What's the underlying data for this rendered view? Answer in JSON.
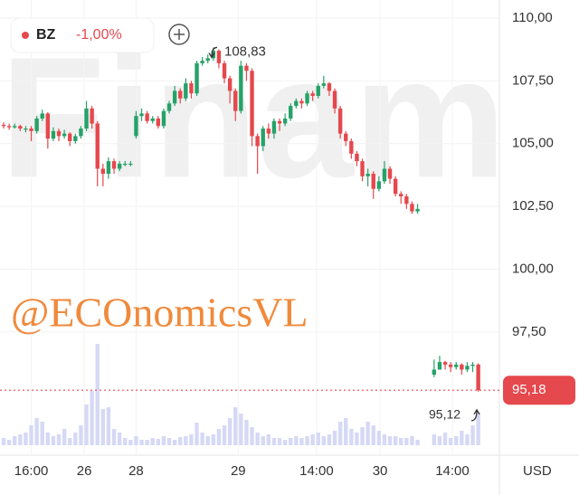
{
  "chart_data": {
    "type": "candlestick",
    "ticker": "BZ",
    "change": "-1,00%",
    "watermark": "Finam",
    "overlay_text": "@ECOnomicsVL",
    "currency": "USD",
    "up_color": "#26a269",
    "down_color": "#e5484d",
    "volume_color": "#d6d9f5",
    "grid": true,
    "x": [
      0,
      1,
      2,
      3,
      4,
      5,
      6,
      7,
      8,
      9,
      10,
      11,
      12,
      13,
      14,
      15,
      16,
      17,
      18,
      19,
      20,
      21,
      22,
      23,
      24,
      25,
      26,
      27,
      28,
      29,
      30,
      31,
      32,
      33,
      34,
      35,
      36,
      37,
      38,
      39,
      40,
      41,
      42,
      43,
      44,
      45,
      46,
      47,
      48,
      49,
      50,
      51,
      52,
      53,
      54,
      55,
      56,
      57,
      58,
      59,
      60,
      61,
      62,
      63,
      64,
      65,
      66,
      67,
      68,
      69,
      70,
      71,
      72,
      73,
      74,
      75,
      78,
      79,
      80,
      81,
      82,
      83,
      84,
      85,
      86
    ],
    "open": [
      105.75,
      105.7,
      105.65,
      105.7,
      105.6,
      105.6,
      105.5,
      106.0,
      106.2,
      105.2,
      105.5,
      105.3,
      105.4,
      105.1,
      105.3,
      105.6,
      106.4,
      105.8,
      104.0,
      103.8,
      104.3,
      104.0,
      104.2,
      104.2,
      105.3,
      106.1,
      106.2,
      105.9,
      106.0,
      105.7,
      106.3,
      106.6,
      107.1,
      106.8,
      107.4,
      107.0,
      108.2,
      108.3,
      108.4,
      108.7,
      108.2,
      107.6,
      107.1,
      106.3,
      108.1,
      107.9,
      105.3,
      104.9,
      105.6,
      105.4,
      105.9,
      105.8,
      106.0,
      106.5,
      106.7,
      106.6,
      107.0,
      106.9,
      107.3,
      107.4,
      107.1,
      106.4,
      105.4,
      105.1,
      104.6,
      104.3,
      103.7,
      103.8,
      103.2,
      103.5,
      104.0,
      103.6,
      103.0,
      102.9,
      102.6,
      102.3,
      95.8,
      96.0,
      96.3,
      96.2,
      96.1,
      96.2,
      96.0,
      96.15,
      96.2
    ],
    "high": [
      105.85,
      105.8,
      105.8,
      105.75,
      105.7,
      105.7,
      106.1,
      106.35,
      106.25,
      105.65,
      105.6,
      105.55,
      105.45,
      105.4,
      105.7,
      106.7,
      106.5,
      105.9,
      104.2,
      104.45,
      104.4,
      104.3,
      104.3,
      104.3,
      106.3,
      106.4,
      106.3,
      106.1,
      106.1,
      106.4,
      106.7,
      107.3,
      107.2,
      107.6,
      107.5,
      108.3,
      108.45,
      108.55,
      108.83,
      108.75,
      108.3,
      107.7,
      107.2,
      108.3,
      108.2,
      108.0,
      105.4,
      105.7,
      105.8,
      106.0,
      106.0,
      106.2,
      106.6,
      106.8,
      106.8,
      107.1,
      107.1,
      107.4,
      107.7,
      107.45,
      107.2,
      106.5,
      105.5,
      105.2,
      104.7,
      104.4,
      104.0,
      103.9,
      103.7,
      104.3,
      104.1,
      103.7,
      103.1,
      103.0,
      102.7,
      102.6,
      96.4,
      96.55,
      96.35,
      96.3,
      96.3,
      96.25,
      96.3,
      96.3,
      96.25
    ],
    "low": [
      105.6,
      105.55,
      105.6,
      105.5,
      105.45,
      105.1,
      105.4,
      105.9,
      104.8,
      105.1,
      105.1,
      105.2,
      104.9,
      105.0,
      105.2,
      105.5,
      105.6,
      103.3,
      103.3,
      103.6,
      103.8,
      103.9,
      104.1,
      104.1,
      105.2,
      105.9,
      105.8,
      105.8,
      105.6,
      105.6,
      106.2,
      106.5,
      106.6,
      106.7,
      106.8,
      106.9,
      108.1,
      108.2,
      108.3,
      108.0,
      107.4,
      106.6,
      105.9,
      106.2,
      107.5,
      104.9,
      103.8,
      104.7,
      105.2,
      105.2,
      105.5,
      105.7,
      105.9,
      106.4,
      106.4,
      106.5,
      106.7,
      106.8,
      107.2,
      106.9,
      106.2,
      105.2,
      104.9,
      104.4,
      104.1,
      103.5,
      103.3,
      102.8,
      103.1,
      103.4,
      103.4,
      102.9,
      102.6,
      102.4,
      102.2,
      102.2,
      95.7,
      96.0,
      96.0,
      95.9,
      96.0,
      95.8,
      95.9,
      95.9,
      95.12
    ],
    "close": [
      105.7,
      105.65,
      105.7,
      105.6,
      105.6,
      105.5,
      106.0,
      106.2,
      105.2,
      105.5,
      105.3,
      105.4,
      105.1,
      105.3,
      105.6,
      106.4,
      105.8,
      104.0,
      103.8,
      104.3,
      104.0,
      104.2,
      104.2,
      104.2,
      106.1,
      106.2,
      105.9,
      106.0,
      105.7,
      106.3,
      106.6,
      107.1,
      106.8,
      107.4,
      107.0,
      108.2,
      108.3,
      108.4,
      108.7,
      108.2,
      107.6,
      107.1,
      106.3,
      108.1,
      107.9,
      105.3,
      104.9,
      105.6,
      105.4,
      105.9,
      105.8,
      106.0,
      106.5,
      106.7,
      106.6,
      107.0,
      106.9,
      107.3,
      107.4,
      107.1,
      106.4,
      105.4,
      105.1,
      104.6,
      104.3,
      103.7,
      103.8,
      103.2,
      103.5,
      104.0,
      103.6,
      103.0,
      102.9,
      102.6,
      102.3,
      102.4,
      96.0,
      96.3,
      96.2,
      96.1,
      96.2,
      96.0,
      96.15,
      96.2,
      95.18
    ],
    "volume": [
      8,
      6,
      10,
      12,
      14,
      22,
      30,
      26,
      14,
      10,
      12,
      18,
      8,
      14,
      22,
      45,
      60,
      112,
      40,
      42,
      18,
      14,
      8,
      6,
      10,
      6,
      6,
      8,
      7,
      10,
      8,
      6,
      9,
      10,
      12,
      25,
      14,
      10,
      12,
      18,
      22,
      30,
      42,
      35,
      28,
      20,
      14,
      10,
      12,
      8,
      8,
      6,
      8,
      10,
      8,
      10,
      12,
      14,
      10,
      12,
      16,
      26,
      30,
      18,
      14,
      20,
      26,
      22,
      16,
      12,
      10,
      10,
      8,
      8,
      10,
      6,
      12,
      10,
      14,
      8,
      10,
      16,
      12,
      22,
      36
    ],
    "xlim": [
      -0.66,
      89.5
    ],
    "xticks": [
      {
        "value": 5,
        "label": "16:00"
      },
      {
        "value": 14.6,
        "label": "26"
      },
      {
        "value": 24,
        "label": "28"
      },
      {
        "value": 42.5,
        "label": "29"
      },
      {
        "value": 56.7,
        "label": "14:00"
      },
      {
        "value": 68.2,
        "label": "30"
      },
      {
        "value": 81.3,
        "label": "14:00"
      }
    ],
    "ylim": [
      92.7,
      110.72
    ],
    "yticks": [
      {
        "value": 110,
        "label": "110,00"
      },
      {
        "value": 107.5,
        "label": "107,50"
      },
      {
        "value": 105,
        "label": "105,00"
      },
      {
        "value": 102.5,
        "label": "102,50"
      },
      {
        "value": 100,
        "label": "100,00"
      },
      {
        "value": 97.5,
        "label": "97,50"
      }
    ],
    "last_price": {
      "value": 95.18,
      "label": "95,18"
    },
    "high_marker": {
      "value": 108.83,
      "label": "108,83"
    },
    "low_marker": {
      "value": 95.12,
      "label": "95,12"
    }
  }
}
